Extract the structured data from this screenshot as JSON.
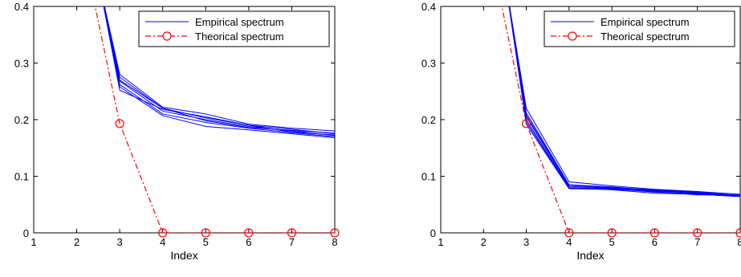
{
  "chart_data": [
    {
      "type": "line",
      "xlabel": "Index",
      "ylabel": "",
      "xlim": [
        1,
        8
      ],
      "ylim": [
        0,
        0.4
      ],
      "xticks": [
        1,
        2,
        3,
        4,
        5,
        6,
        7,
        8
      ],
      "yticks": [
        0,
        0.1,
        0.2,
        0.3,
        0.4
      ],
      "grid": false,
      "legend_position": "top-right",
      "legend": [
        "Empirical spectrum",
        "Theorical spectrum"
      ],
      "colors": {
        "empirical": "#0000ff",
        "theoretical": "#ff0000"
      },
      "empirical_series": [
        {
          "x": [
            2,
            2.5,
            3,
            4,
            5,
            6,
            7,
            8
          ],
          "y": [
            1.2,
            0.45,
            0.28,
            0.222,
            0.21,
            0.192,
            0.185,
            0.18
          ]
        },
        {
          "x": [
            2,
            2.5,
            3,
            4,
            5,
            6,
            7,
            8
          ],
          "y": [
            1.2,
            0.45,
            0.275,
            0.22,
            0.203,
            0.19,
            0.183,
            0.175
          ]
        },
        {
          "x": [
            2,
            2.5,
            3,
            4,
            5,
            6,
            7,
            8
          ],
          "y": [
            1.2,
            0.45,
            0.268,
            0.215,
            0.2,
            0.188,
            0.18,
            0.172
          ]
        },
        {
          "x": [
            2,
            2.5,
            3,
            4,
            5,
            6,
            7,
            8
          ],
          "y": [
            1.2,
            0.45,
            0.262,
            0.21,
            0.195,
            0.185,
            0.177,
            0.17
          ]
        },
        {
          "x": [
            2,
            2.5,
            3,
            4,
            5,
            6,
            7,
            8
          ],
          "y": [
            1.2,
            0.45,
            0.258,
            0.207,
            0.188,
            0.182,
            0.175,
            0.168
          ]
        },
        {
          "x": [
            2,
            2.5,
            3,
            4,
            5,
            6,
            7,
            8
          ],
          "y": [
            1.2,
            0.45,
            0.252,
            0.218,
            0.205,
            0.19,
            0.178,
            0.173
          ]
        },
        {
          "x": [
            2,
            2.5,
            3,
            4,
            5,
            6,
            7,
            8
          ],
          "y": [
            1.2,
            0.45,
            0.27,
            0.22,
            0.198,
            0.186,
            0.181,
            0.176
          ]
        }
      ],
      "theoretical_series": {
        "x_line": [
          2.4,
          3,
          4,
          5,
          6,
          7,
          8
        ],
        "y_line": [
          0.41,
          0.193,
          0,
          0,
          0,
          0,
          0
        ],
        "x_markers": [
          3,
          4,
          5,
          6,
          7,
          8
        ],
        "y_markers": [
          0.193,
          0,
          0,
          0,
          0,
          0
        ]
      }
    },
    {
      "type": "line",
      "xlabel": "Index",
      "ylabel": "",
      "xlim": [
        1,
        8
      ],
      "ylim": [
        0,
        0.4
      ],
      "xticks": [
        1,
        2,
        3,
        4,
        5,
        6,
        7,
        8
      ],
      "yticks": [
        0,
        0.1,
        0.2,
        0.3,
        0.4
      ],
      "grid": false,
      "legend_position": "top-right",
      "legend": [
        "Empirical spectrum",
        "Theorical spectrum"
      ],
      "colors": {
        "empirical": "#0000ff",
        "theoretical": "#ff0000"
      },
      "empirical_series": [
        {
          "x": [
            2,
            2.5,
            3,
            4,
            5,
            6,
            7,
            8
          ],
          "y": [
            1.2,
            0.45,
            0.22,
            0.09,
            0.083,
            0.077,
            0.073,
            0.068
          ]
        },
        {
          "x": [
            2,
            2.5,
            3,
            4,
            5,
            6,
            7,
            8
          ],
          "y": [
            1.2,
            0.45,
            0.212,
            0.085,
            0.081,
            0.075,
            0.071,
            0.066
          ]
        },
        {
          "x": [
            2,
            2.5,
            3,
            4,
            5,
            6,
            7,
            8
          ],
          "y": [
            1.2,
            0.45,
            0.205,
            0.082,
            0.079,
            0.074,
            0.07,
            0.065
          ]
        },
        {
          "x": [
            2,
            2.5,
            3,
            4,
            5,
            6,
            7,
            8
          ],
          "y": [
            1.2,
            0.45,
            0.2,
            0.08,
            0.078,
            0.072,
            0.069,
            0.066
          ]
        },
        {
          "x": [
            2,
            2.5,
            3,
            4,
            5,
            6,
            7,
            8
          ],
          "y": [
            1.2,
            0.45,
            0.196,
            0.079,
            0.076,
            0.07,
            0.068,
            0.064
          ]
        },
        {
          "x": [
            2,
            2.5,
            3,
            4,
            5,
            6,
            7,
            8
          ],
          "y": [
            1.2,
            0.45,
            0.192,
            0.078,
            0.077,
            0.073,
            0.067,
            0.067
          ]
        },
        {
          "x": [
            2,
            2.5,
            3,
            4,
            5,
            6,
            7,
            8
          ],
          "y": [
            1.2,
            0.45,
            0.208,
            0.084,
            0.08,
            0.076,
            0.072,
            0.066
          ]
        }
      ],
      "theoretical_series": {
        "x_line": [
          2.4,
          3,
          4,
          5,
          6,
          7,
          8
        ],
        "y_line": [
          0.41,
          0.193,
          0,
          0,
          0,
          0,
          0
        ],
        "x_markers": [
          3,
          4,
          5,
          6,
          7,
          8
        ],
        "y_markers": [
          0.193,
          0,
          0,
          0,
          0,
          0
        ]
      }
    }
  ]
}
